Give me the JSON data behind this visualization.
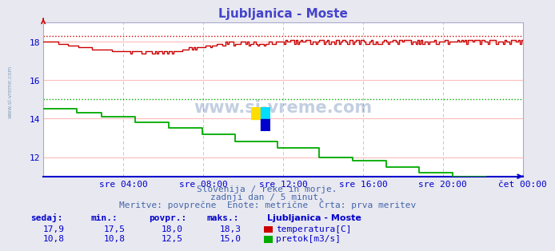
{
  "title": "Ljubljanica - Moste",
  "title_color": "#4444cc",
  "bg_color": "#e8e8f0",
  "plot_bg_color": "#ffffff",
  "grid_color_h": "#ffbbbb",
  "grid_color_v": "#ddbbbb",
  "axis_color": "#0000cc",
  "text_color": "#4466aa",
  "spine_color": "#aaaacc",
  "bottom_spine_color": "#0000cc",
  "x_labels": [
    "sre 04:00",
    "sre 08:00",
    "sre 12:00",
    "sre 16:00",
    "sre 20:00",
    "čet 00:00"
  ],
  "x_label_fracs": [
    0.1667,
    0.3333,
    0.5,
    0.6667,
    0.8333,
    1.0
  ],
  "y_min": 11.0,
  "y_max": 19.0,
  "y_ticks": [
    12,
    14,
    16,
    18
  ],
  "temp_color": "#cc0000",
  "flow_color": "#00aa00",
  "temp_max_line": 18.3,
  "flow_max_line": 15.0,
  "subtitle1": "Slovenija / reke in morje.",
  "subtitle2": "zadnji dan / 5 minut.",
  "subtitle3": "Meritve: povprečne  Enote: metrične  Črta: prva meritev",
  "legend_title": "Ljubljanica - Moste",
  "col_headers": [
    "sedaj:",
    "min.:",
    "povpr.:",
    "maks.:"
  ],
  "row1_vals": [
    "17,9",
    "17,5",
    "18,0",
    "18,3"
  ],
  "row2_vals": [
    "10,8",
    "10,8",
    "12,5",
    "15,0"
  ],
  "row1_label": "temperatura[C]",
  "row2_label": "pretok[m3/s]",
  "row1_color": "#cc0000",
  "row2_color": "#00aa00",
  "watermark": "www.si-vreme.com",
  "sidewatermark": "www.si-vreme.com"
}
